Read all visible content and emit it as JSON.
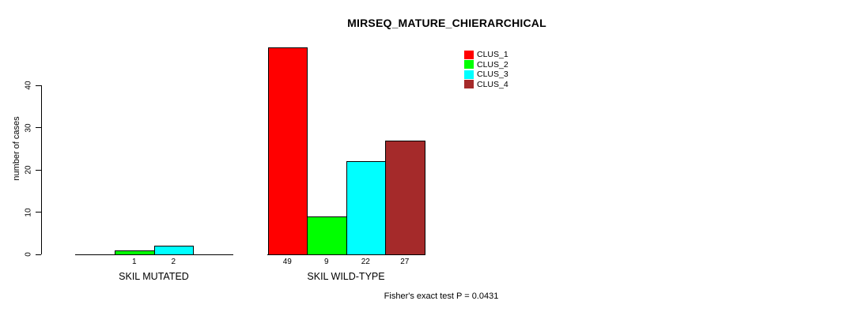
{
  "chart_data": {
    "type": "bar",
    "title": "MIRSEQ_MATURE_CHIERARCHICAL",
    "ylabel": "number of cases",
    "ylim": [
      0,
      49
    ],
    "yticks": [
      0,
      10,
      20,
      30,
      40
    ],
    "categories": [
      "SKIL MUTATED",
      "SKIL WILD-TYPE"
    ],
    "series": [
      {
        "name": "CLUS_1",
        "color": "#ff0000",
        "values": [
          0,
          49
        ]
      },
      {
        "name": "CLUS_2",
        "color": "#00ff00",
        "values": [
          1,
          9
        ]
      },
      {
        "name": "CLUS_3",
        "color": "#00ffff",
        "values": [
          2,
          22
        ]
      },
      {
        "name": "CLUS_4",
        "color": "#a52a2a",
        "values": [
          0,
          27
        ]
      }
    ],
    "value_labels_shown": [
      [
        "",
        "1",
        "2",
        ""
      ],
      [
        "49",
        "9",
        "22",
        "27"
      ]
    ],
    "annotation": "Fisher's exact test P = 0.0431",
    "legend_position": "top-right",
    "grid": false,
    "background": "#ffffff",
    "axis_color": "#000000"
  }
}
